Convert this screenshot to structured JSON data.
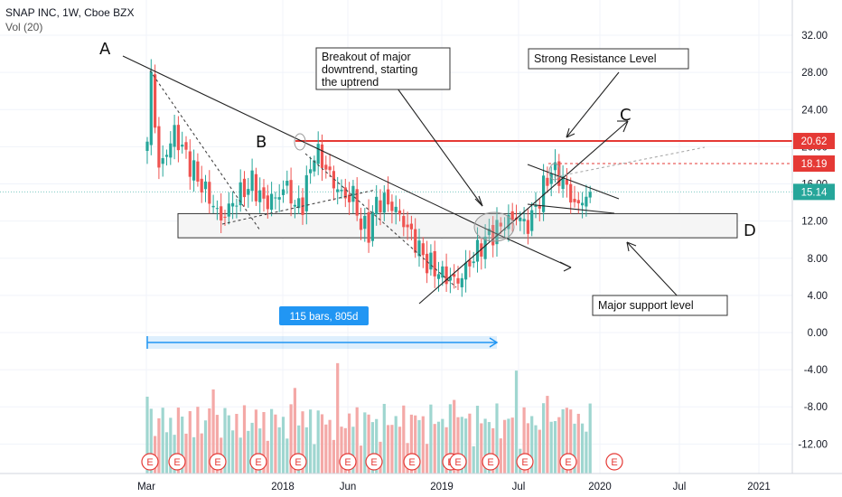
{
  "header": {
    "symbol_line": "SNAP INC, 1W, Cboe BZX",
    "volume_line": "Vol (20)"
  },
  "colors": {
    "up": "#26a69a",
    "down": "#ef5350",
    "volume_up": "#9fd6d0",
    "volume_down": "#f4a9a7",
    "resistance": "#e53935",
    "current_price": "#26a69a",
    "measure": "#2196f3"
  },
  "chart_data": {
    "type": "candlestick",
    "title": "SNAP INC, 1W, Cboe BZX",
    "x_ticks": [
      "Mar",
      "2018",
      "Jun",
      "2019",
      "Jul",
      "2020",
      "Jul",
      "2021"
    ],
    "y_ticks": [
      "32.00",
      "28.00",
      "24.00",
      "20.00",
      "16.00",
      "12.00",
      "8.00",
      "4.00",
      "0.00",
      "-4.00",
      "-8.00",
      "-12.00"
    ],
    "ylim": [
      -15.5,
      35.5
    ],
    "price_labels": [
      {
        "value": 20.62,
        "text": "20.62",
        "color": "#e53935"
      },
      {
        "value": 18.19,
        "text": "18.19",
        "color": "#e53935"
      },
      {
        "value": 15.14,
        "text": "15.14",
        "color": "#26a69a"
      }
    ],
    "resistance_level": 20.62,
    "support_zone": [
      10.2,
      12.8
    ],
    "measure_label": "115 bars, 805d",
    "annotations": {
      "point_a": "A",
      "point_b": "B",
      "point_c": "C",
      "point_d": "D",
      "breakout_note": [
        "Breakout of major",
        "downtrend, starting",
        "the uptrend"
      ],
      "resistance_note": "Strong Resistance Level",
      "support_note": "Major support level"
    },
    "earnings_marker": "E",
    "earnings_count": 12,
    "weeks": 115,
    "anchors": [
      [
        0,
        20.0
      ],
      [
        1,
        27.8
      ],
      [
        3,
        17.5
      ],
      [
        7,
        21.5
      ],
      [
        10,
        19.0
      ],
      [
        13,
        16.5
      ],
      [
        16,
        14.5
      ],
      [
        19,
        12.2
      ],
      [
        23,
        14.5
      ],
      [
        27,
        16.2
      ],
      [
        30,
        14.0
      ],
      [
        33,
        14.5
      ],
      [
        36,
        15.8
      ],
      [
        38,
        13.5
      ],
      [
        40,
        14.0
      ],
      [
        43,
        19.5
      ],
      [
        45,
        18.5
      ],
      [
        48,
        16.0
      ],
      [
        51,
        14.5
      ],
      [
        53,
        14.8
      ],
      [
        55,
        11.5
      ],
      [
        57,
        11.0
      ],
      [
        59,
        14.0
      ],
      [
        61,
        14.2
      ],
      [
        64,
        13.2
      ],
      [
        68,
        10.5
      ],
      [
        72,
        7.5
      ],
      [
        76,
        6.2
      ],
      [
        80,
        5.5
      ],
      [
        83,
        7.5
      ],
      [
        87,
        10.0
      ],
      [
        91,
        11.5
      ],
      [
        95,
        12.5
      ],
      [
        98,
        11.5
      ],
      [
        101,
        14.5
      ],
      [
        104,
        17.5
      ],
      [
        107,
        16.5
      ],
      [
        109,
        14.5
      ],
      [
        111,
        13.5
      ],
      [
        113,
        15.0
      ],
      [
        114,
        15.14
      ]
    ]
  }
}
